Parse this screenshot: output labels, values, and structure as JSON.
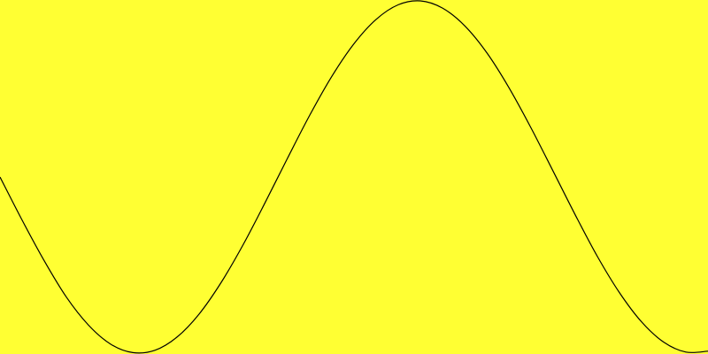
{
  "colors": {
    "background": "#ffff33",
    "line": "#000000"
  },
  "chart_data": {
    "type": "line",
    "title": "",
    "xlabel": "",
    "ylabel": "",
    "grid": false,
    "legend": "none",
    "xlim": [
      0,
      8
    ],
    "ylim": [
      -1,
      1
    ],
    "series": [
      {
        "x": [
          0,
          0.25,
          0.5,
          0.75,
          1,
          1.25,
          1.5,
          1.75,
          2,
          2.25,
          2.5,
          2.75,
          3,
          3.25,
          3.5,
          3.75,
          4,
          4.25,
          4.5,
          4.75,
          5,
          5.25,
          5.5,
          5.75,
          6,
          6.25,
          6.5,
          6.75,
          7,
          7.25,
          7.5,
          7.75,
          8
        ],
        "y": [
          0,
          -0.245,
          -0.476,
          -0.682,
          -0.841,
          -0.949,
          -0.997,
          -0.984,
          -0.909,
          -0.778,
          -0.598,
          -0.382,
          -0.141,
          0.108,
          0.351,
          0.572,
          0.757,
          0.895,
          0.978,
          1.0,
          0.959,
          0.859,
          0.706,
          0.508,
          0.279,
          0.033,
          -0.215,
          -0.451,
          -0.657,
          -0.823,
          -0.938,
          -0.994,
          -0.989
        ]
      }
    ]
  }
}
